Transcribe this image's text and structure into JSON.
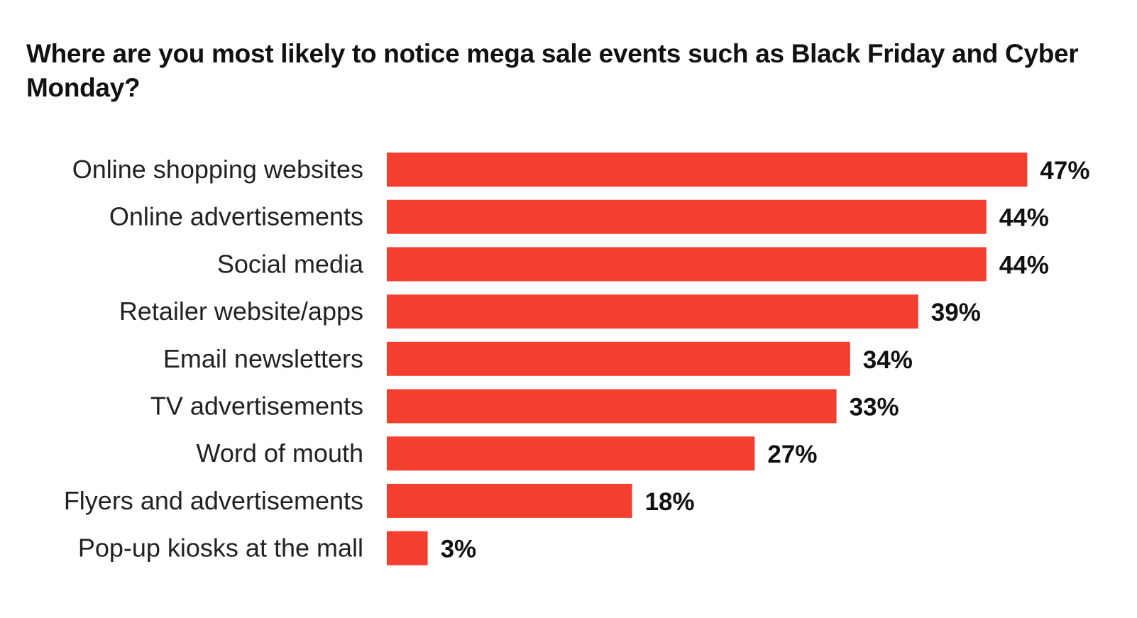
{
  "chart_data": {
    "type": "bar",
    "orientation": "horizontal",
    "title": "Where are you most likely to notice mega sale events such as Black Friday and Cyber Monday?",
    "categories": [
      "Online shopping websites",
      "Online advertisements",
      "Social media",
      "Retailer website/apps",
      "Email newsletters",
      "TV advertisements",
      "Word of mouth",
      "Flyers and advertisements",
      "Pop-up kiosks at the mall"
    ],
    "values": [
      47,
      44,
      44,
      39,
      34,
      33,
      27,
      18,
      3
    ],
    "value_labels": [
      "47%",
      "44%",
      "44%",
      "39%",
      "34%",
      "33%",
      "27%",
      "18%",
      "3%"
    ],
    "unit": "%",
    "grid": false,
    "legend": "none",
    "bar_color": "#F43F2F"
  }
}
